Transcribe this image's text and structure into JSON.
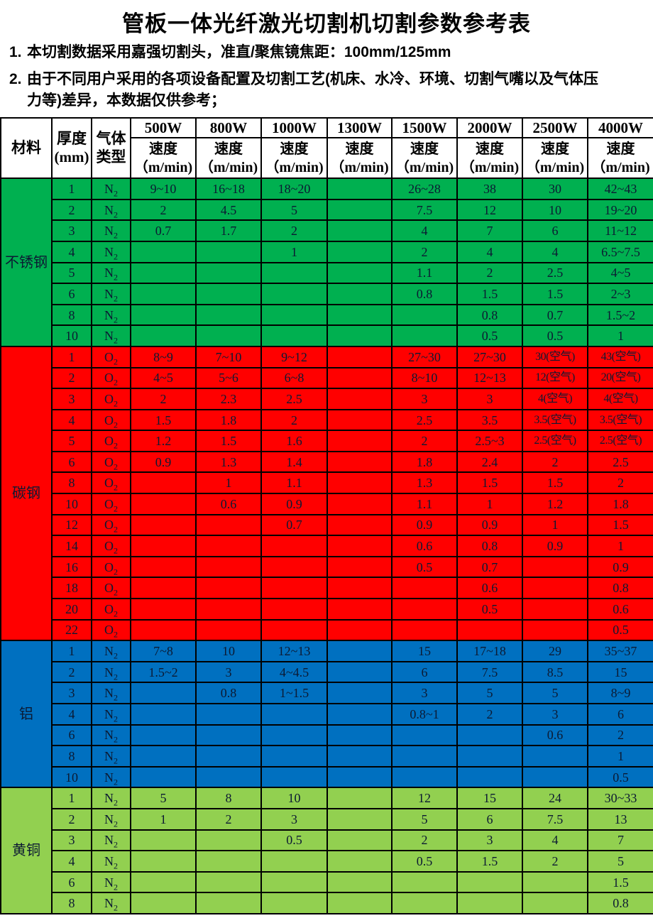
{
  "title": "管板一体光纤激光切割机切割参数参考表",
  "notes": {
    "n1_num": "1.",
    "n1_text": "本切割数据采用嘉强切割头，准直/聚焦镜焦距：100mm/125mm",
    "n2_num": "2.",
    "n2_line1": "由于不同用户采用的各项设备配置及切割工艺(机床、水冷、环境、切割气嘴以及气体压",
    "n2_line2": "力等)差异，本数据仅供参考；"
  },
  "table": {
    "header": {
      "material": "材料",
      "thickness_l1": "厚度",
      "thickness_l2": "(mm)",
      "gas_l1": "气体",
      "gas_l2": "类型",
      "powers": [
        "500W",
        "800W",
        "1000W",
        "1300W",
        "1500W",
        "2000W",
        "2500W",
        "4000W"
      ],
      "speed_label": "速度",
      "speed_unit": "（m/min)"
    },
    "sections": [
      {
        "material": "不锈钢",
        "color": "#00B050",
        "rows": [
          {
            "t": "1",
            "gas": "N2",
            "v": [
              "9~10",
              "16~18",
              "18~20",
              "",
              "26~28",
              "38",
              "30",
              "42~43"
            ]
          },
          {
            "t": "2",
            "gas": "N2",
            "v": [
              "2",
              "4.5",
              "5",
              "",
              "7.5",
              "12",
              "10",
              "19~20"
            ]
          },
          {
            "t": "3",
            "gas": "N2",
            "v": [
              "0.7",
              "1.7",
              "2",
              "",
              "4",
              "7",
              "6",
              "11~12"
            ]
          },
          {
            "t": "4",
            "gas": "N2",
            "v": [
              "",
              "",
              "1",
              "",
              "2",
              "4",
              "4",
              "6.5~7.5"
            ]
          },
          {
            "t": "5",
            "gas": "N2",
            "v": [
              "",
              "",
              "",
              "",
              "1.1",
              "2",
              "2.5",
              "4~5"
            ]
          },
          {
            "t": "6",
            "gas": "N2",
            "v": [
              "",
              "",
              "",
              "",
              "0.8",
              "1.5",
              "1.5",
              "2~3"
            ]
          },
          {
            "t": "8",
            "gas": "N2",
            "v": [
              "",
              "",
              "",
              "",
              "",
              "0.8",
              "0.7",
              "1.5~2"
            ]
          },
          {
            "t": "10",
            "gas": "N2",
            "v": [
              "",
              "",
              "",
              "",
              "",
              "0.5",
              "0.5",
              "1"
            ]
          }
        ]
      },
      {
        "material": "碳钢",
        "color": "#FF0000",
        "rows": [
          {
            "t": "1",
            "gas": "O2",
            "v": [
              "8~9",
              "7~10",
              "9~12",
              "",
              "27~30",
              "27~30",
              "30(空气)",
              "43(空气)"
            ]
          },
          {
            "t": "2",
            "gas": "O2",
            "v": [
              "4~5",
              "5~6",
              "6~8",
              "",
              "8~10",
              "12~13",
              "12(空气)",
              "20(空气)"
            ]
          },
          {
            "t": "3",
            "gas": "O2",
            "v": [
              "2",
              "2.3",
              "2.5",
              "",
              "3",
              "3",
              "4(空气)",
              "4(空气)"
            ]
          },
          {
            "t": "4",
            "gas": "O2",
            "v": [
              "1.5",
              "1.8",
              "2",
              "",
              "2.5",
              "3.5",
              "3.5(空气)",
              "3.5(空气)"
            ]
          },
          {
            "t": "5",
            "gas": "O2",
            "v": [
              "1.2",
              "1.5",
              "1.6",
              "",
              "2",
              "2.5~3",
              "2.5(空气)",
              "2.5(空气)"
            ]
          },
          {
            "t": "6",
            "gas": "O2",
            "v": [
              "0.9",
              "1.3",
              "1.4",
              "",
              "1.8",
              "2.4",
              "2",
              "2.5"
            ]
          },
          {
            "t": "8",
            "gas": "O2",
            "v": [
              "",
              "1",
              "1.1",
              "",
              "1.3",
              "1.5",
              "1.5",
              "2"
            ]
          },
          {
            "t": "10",
            "gas": "O2",
            "v": [
              "",
              "0.6",
              "0.9",
              "",
              "1.1",
              "1",
              "1.2",
              "1.8"
            ]
          },
          {
            "t": "12",
            "gas": "O2",
            "v": [
              "",
              "",
              "0.7",
              "",
              "0.9",
              "0.9",
              "1",
              "1.5"
            ]
          },
          {
            "t": "14",
            "gas": "O2",
            "v": [
              "",
              "",
              "",
              "",
              "0.6",
              "0.8",
              "0.9",
              "1"
            ]
          },
          {
            "t": "16",
            "gas": "O2",
            "v": [
              "",
              "",
              "",
              "",
              "0.5",
              "0.7",
              "",
              "0.9"
            ]
          },
          {
            "t": "18",
            "gas": "O2",
            "v": [
              "",
              "",
              "",
              "",
              "",
              "0.6",
              "",
              "0.8"
            ]
          },
          {
            "t": "20",
            "gas": "O2",
            "v": [
              "",
              "",
              "",
              "",
              "",
              "0.5",
              "",
              "0.6"
            ]
          },
          {
            "t": "22",
            "gas": "O2",
            "v": [
              "",
              "",
              "",
              "",
              "",
              "",
              "",
              "0.5"
            ]
          }
        ]
      },
      {
        "material": "铝",
        "color": "#0070C0",
        "rows": [
          {
            "t": "1",
            "gas": "N2",
            "v": [
              "7~8",
              "10",
              "12~13",
              "",
              "15",
              "17~18",
              "29",
              "35~37"
            ]
          },
          {
            "t": "2",
            "gas": "N2",
            "v": [
              "1.5~2",
              "3",
              "4~4.5",
              "",
              "6",
              "7.5",
              "8.5",
              "15"
            ]
          },
          {
            "t": "3",
            "gas": "N2",
            "v": [
              "",
              "0.8",
              "1~1.5",
              "",
              "3",
              "5",
              "5",
              "8~9"
            ]
          },
          {
            "t": "4",
            "gas": "N2",
            "v": [
              "",
              "",
              "",
              "",
              "0.8~1",
              "2",
              "3",
              "6"
            ]
          },
          {
            "t": "6",
            "gas": "N2",
            "v": [
              "",
              "",
              "",
              "",
              "",
              "",
              "0.6",
              "2"
            ]
          },
          {
            "t": "8",
            "gas": "N2",
            "v": [
              "",
              "",
              "",
              "",
              "",
              "",
              "",
              "1"
            ]
          },
          {
            "t": "10",
            "gas": "N2",
            "v": [
              "",
              "",
              "",
              "",
              "",
              "",
              "",
              "0.5"
            ]
          }
        ]
      },
      {
        "material": "黄铜",
        "color": "#92D050",
        "rows": [
          {
            "t": "1",
            "gas": "N2",
            "v": [
              "5",
              "8",
              "10",
              "",
              "12",
              "15",
              "24",
              "30~33"
            ]
          },
          {
            "t": "2",
            "gas": "N2",
            "v": [
              "1",
              "2",
              "3",
              "",
              "5",
              "6",
              "7.5",
              "13"
            ]
          },
          {
            "t": "3",
            "gas": "N2",
            "v": [
              "",
              "",
              "0.5",
              "",
              "2",
              "3",
              "4",
              "7"
            ]
          },
          {
            "t": "4",
            "gas": "N2",
            "v": [
              "",
              "",
              "",
              "",
              "0.5",
              "1.5",
              "2",
              "5"
            ]
          },
          {
            "t": "6",
            "gas": "N2",
            "v": [
              "",
              "",
              "",
              "",
              "",
              "",
              "",
              "1.5"
            ]
          },
          {
            "t": "8",
            "gas": "N2",
            "v": [
              "",
              "",
              "",
              "",
              "",
              "",
              "",
              "0.8"
            ]
          }
        ]
      }
    ]
  }
}
